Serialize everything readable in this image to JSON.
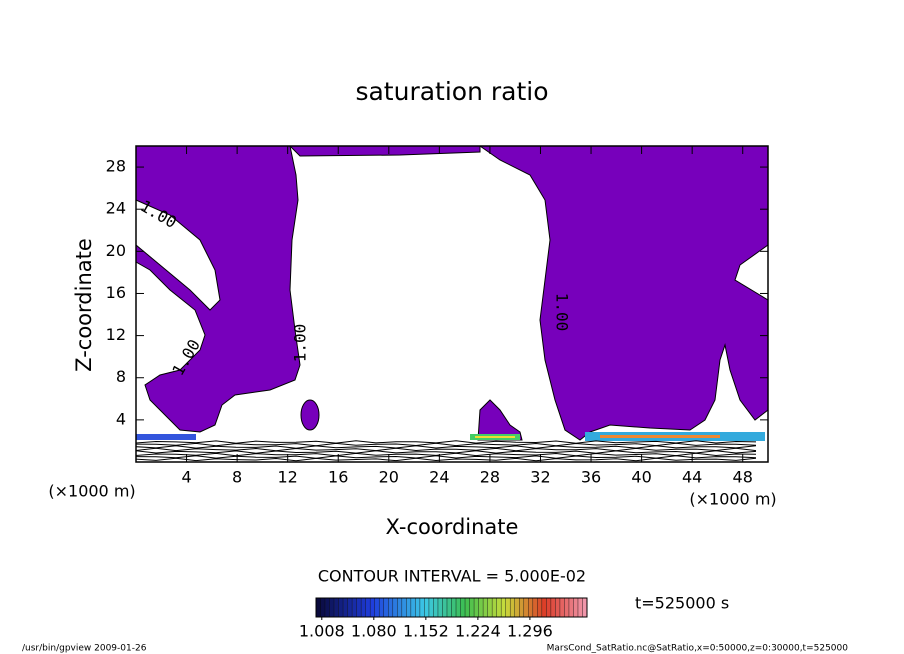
{
  "chart_data": {
    "type": "contour",
    "title": "saturation ratio",
    "x_label": "X-coordinate",
    "y_label": "Z-coordinate",
    "x_unit": "(×1000 m)",
    "xlim": [
      0,
      50
    ],
    "ylim": [
      0,
      30
    ],
    "xticks": [
      4,
      8,
      12,
      16,
      20,
      24,
      28,
      32,
      36,
      40,
      44,
      48
    ],
    "yticks": [
      4,
      8,
      12,
      16,
      20,
      24,
      28
    ],
    "fill_color": "#7700bb",
    "contour_labels": [
      "1.00",
      "1.00",
      "1.00",
      "1.00"
    ],
    "contour_interval": "CONTOUR INTERVAL = 5.000E-02",
    "colorbar_lim": [
      1.0,
      1.375
    ],
    "colorbar_ticks": [
      {
        "value": 1.008,
        "label": "1.008"
      },
      {
        "value": 1.08,
        "label": "1.080"
      },
      {
        "value": 1.152,
        "label": "1.152"
      },
      {
        "value": 1.224,
        "label": "1.224"
      },
      {
        "value": 1.296,
        "label": "1.296"
      }
    ],
    "time_label": "t=525000 s",
    "footer_left": "/usr/bin/gpview  2009-01-26",
    "footer_right": "MarsCond_SatRatio.nc@SatRatio,x=0:50000,z=0:30000,t=525000"
  }
}
